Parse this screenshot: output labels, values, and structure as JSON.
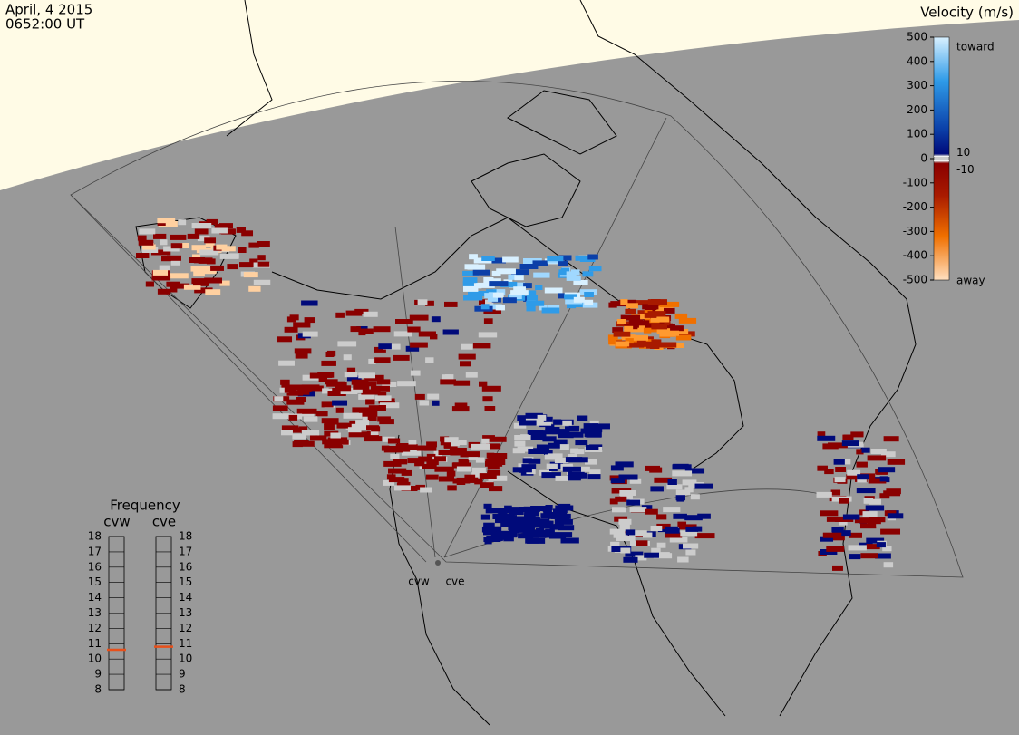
{
  "header": {
    "date": "April, 4 2015",
    "time": "0652:00 UT"
  },
  "colorbar": {
    "title": "Velocity (m/s)",
    "ticks": [
      500,
      400,
      300,
      200,
      100,
      0,
      -100,
      -200,
      -300,
      -400,
      -500
    ],
    "fine_ticks": [
      10,
      -10
    ],
    "toward": "toward",
    "away": "away"
  },
  "frequency": {
    "title": "Frequency",
    "radars": [
      "cvw",
      "cve"
    ],
    "ticks": [
      18,
      17,
      16,
      15,
      14,
      13,
      12,
      11,
      10,
      9,
      8
    ],
    "values": [
      10.6,
      10.8
    ]
  },
  "sites": [
    "cvw",
    "cve"
  ]
}
